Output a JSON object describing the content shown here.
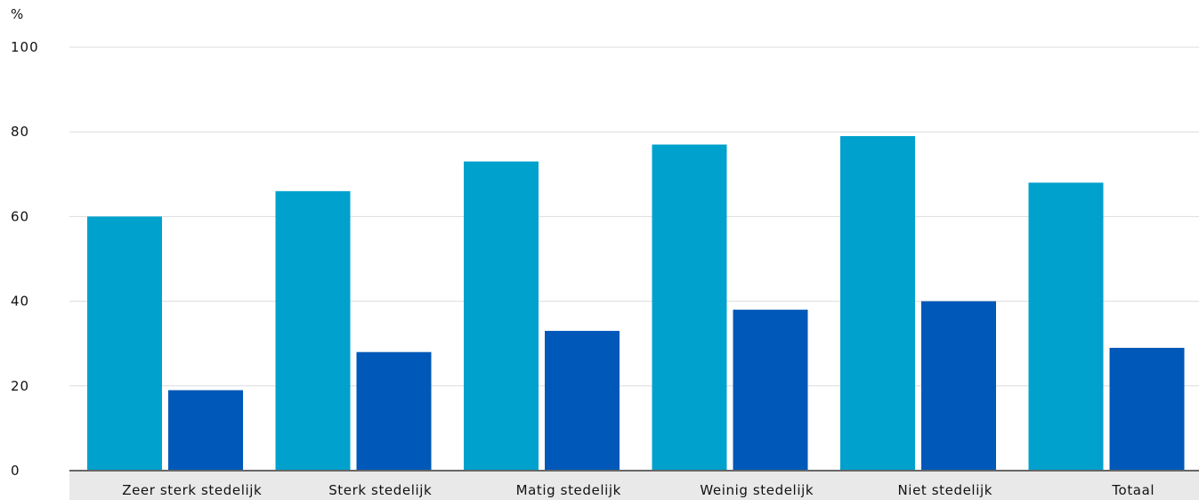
{
  "chart_data": {
    "type": "bar",
    "ylabel": "%",
    "ylim": [
      0,
      100
    ],
    "yticks": [
      0,
      20,
      40,
      60,
      80,
      100
    ],
    "categories": [
      "Zeer sterk stedelijk",
      "Sterk stedelijk",
      "Matig stedelijk",
      "Weinig stedelijk",
      "Niet stedelijk",
      "Totaal"
    ],
    "series": [
      {
        "values": [
          60,
          66,
          73,
          77,
          79,
          68
        ],
        "color": "#00a1cd"
      },
      {
        "values": [
          19,
          28,
          33,
          38,
          40,
          29
        ],
        "color": "#0058b8"
      }
    ],
    "grid": true,
    "legend": "none"
  }
}
